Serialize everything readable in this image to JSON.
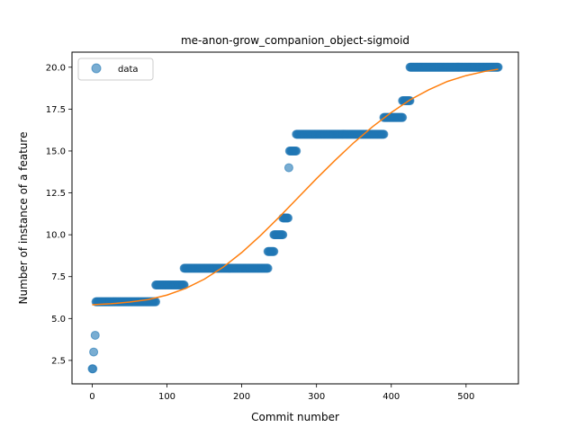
{
  "colors": {
    "scatter": "#1f77b4",
    "curve": "#ff7f0e",
    "axes": "#000000",
    "background": "#ffffff"
  },
  "chart_data": {
    "type": "scatter",
    "title": "me-anon-grow_companion_object-sigmoid",
    "xlabel": "Commit number",
    "ylabel": "Number of instance of a feature",
    "xlim": [
      -27,
      570
    ],
    "ylim": [
      1.1,
      20.9
    ],
    "xticks": [
      0,
      100,
      200,
      300,
      400,
      500
    ],
    "yticks": [
      2.5,
      5.0,
      7.5,
      10.0,
      12.5,
      15.0,
      17.5,
      20.0
    ],
    "xtick_labels": [
      "0",
      "100",
      "200",
      "300",
      "400",
      "500"
    ],
    "ytick_labels": [
      "2.5",
      "5.0",
      "7.5",
      "10.0",
      "12.5",
      "15.0",
      "17.5",
      "20.0"
    ],
    "grid": false,
    "legend": {
      "position": "top-left",
      "entries": [
        "data"
      ]
    },
    "series": [
      {
        "name": "data",
        "kind": "points",
        "segments": [
          {
            "x_start": 0,
            "x_end": 1,
            "y": 2
          },
          {
            "x_start": 2,
            "x_end": 2,
            "y": 3
          },
          {
            "x_start": 4,
            "x_end": 4,
            "y": 4
          },
          {
            "x_start": 5,
            "x_end": 85,
            "y": 6
          },
          {
            "x_start": 85,
            "x_end": 123,
            "y": 7
          },
          {
            "x_start": 123,
            "x_end": 235,
            "y": 8
          },
          {
            "x_start": 235,
            "x_end": 243,
            "y": 9
          },
          {
            "x_start": 243,
            "x_end": 255,
            "y": 10
          },
          {
            "x_start": 255,
            "x_end": 262,
            "y": 11
          },
          {
            "x_start": 263,
            "x_end": 263,
            "y": 14
          },
          {
            "x_start": 264,
            "x_end": 273,
            "y": 15
          },
          {
            "x_start": 273,
            "x_end": 390,
            "y": 16
          },
          {
            "x_start": 390,
            "x_end": 415,
            "y": 17
          },
          {
            "x_start": 415,
            "x_end": 425,
            "y": 18
          },
          {
            "x_start": 425,
            "x_end": 543,
            "y": 20
          }
        ]
      },
      {
        "name": "",
        "kind": "line",
        "x": [
          0,
          25,
          50,
          75,
          100,
          125,
          150,
          175,
          200,
          225,
          250,
          275,
          300,
          325,
          350,
          375,
          400,
          425,
          450,
          475,
          500,
          525,
          543
        ],
        "y": [
          5.82,
          5.88,
          5.98,
          6.13,
          6.4,
          6.8,
          7.35,
          8.06,
          8.94,
          9.95,
          11.05,
          12.2,
          13.35,
          14.45,
          15.5,
          16.45,
          17.3,
          18.05,
          18.65,
          19.15,
          19.5,
          19.75,
          19.88
        ]
      }
    ]
  }
}
